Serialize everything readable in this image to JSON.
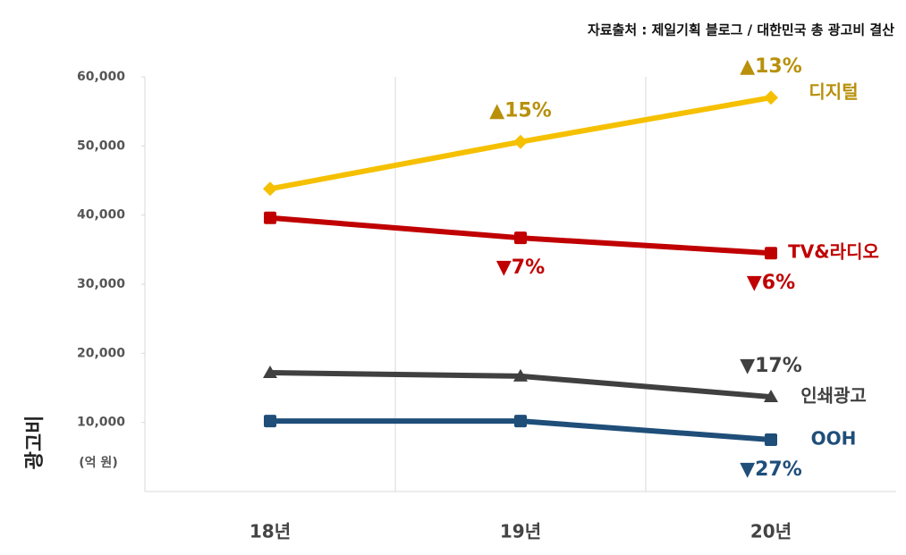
{
  "chart_data": {
    "type": "line",
    "source": "자료출처 : 제일기획 블로그 / 대한민국 총 광고비 결산",
    "y_label": "광고비",
    "y_unit": "(억 원)",
    "categories": [
      "18년",
      "19년",
      "20년"
    ],
    "ylim": [
      0,
      60000
    ],
    "yticks": [
      {
        "value": 10000,
        "label": "10,000"
      },
      {
        "value": 20000,
        "label": "20,000"
      },
      {
        "value": 30000,
        "label": "30,000"
      },
      {
        "value": 40000,
        "label": "40,000"
      },
      {
        "value": 50000,
        "label": "50,000"
      },
      {
        "value": 60000,
        "label": "60,000"
      }
    ],
    "grid": true,
    "series": [
      {
        "name": "디지털",
        "color": "#f5c000",
        "label_color": "#b8900a",
        "marker": "diamond",
        "values": [
          43800,
          50600,
          57000
        ],
        "changes": [
          null,
          "▲15%",
          "▲13%"
        ]
      },
      {
        "name": "TV&라디오",
        "color": "#c00000",
        "label_color": "#c00000",
        "marker": "square",
        "values": [
          39600,
          36700,
          34500
        ],
        "changes": [
          null,
          "▼7%",
          "▼6%"
        ]
      },
      {
        "name": "인쇄광고",
        "color": "#404040",
        "label_color": "#404040",
        "marker": "triangle",
        "values": [
          17200,
          16700,
          13700
        ],
        "changes": [
          null,
          null,
          "▼17%"
        ]
      },
      {
        "name": "OOH",
        "color": "#1f4e79",
        "label_color": "#1f4e79",
        "marker": "square",
        "values": [
          10200,
          10200,
          7500
        ],
        "changes": [
          null,
          null,
          "▼27%"
        ]
      }
    ]
  }
}
